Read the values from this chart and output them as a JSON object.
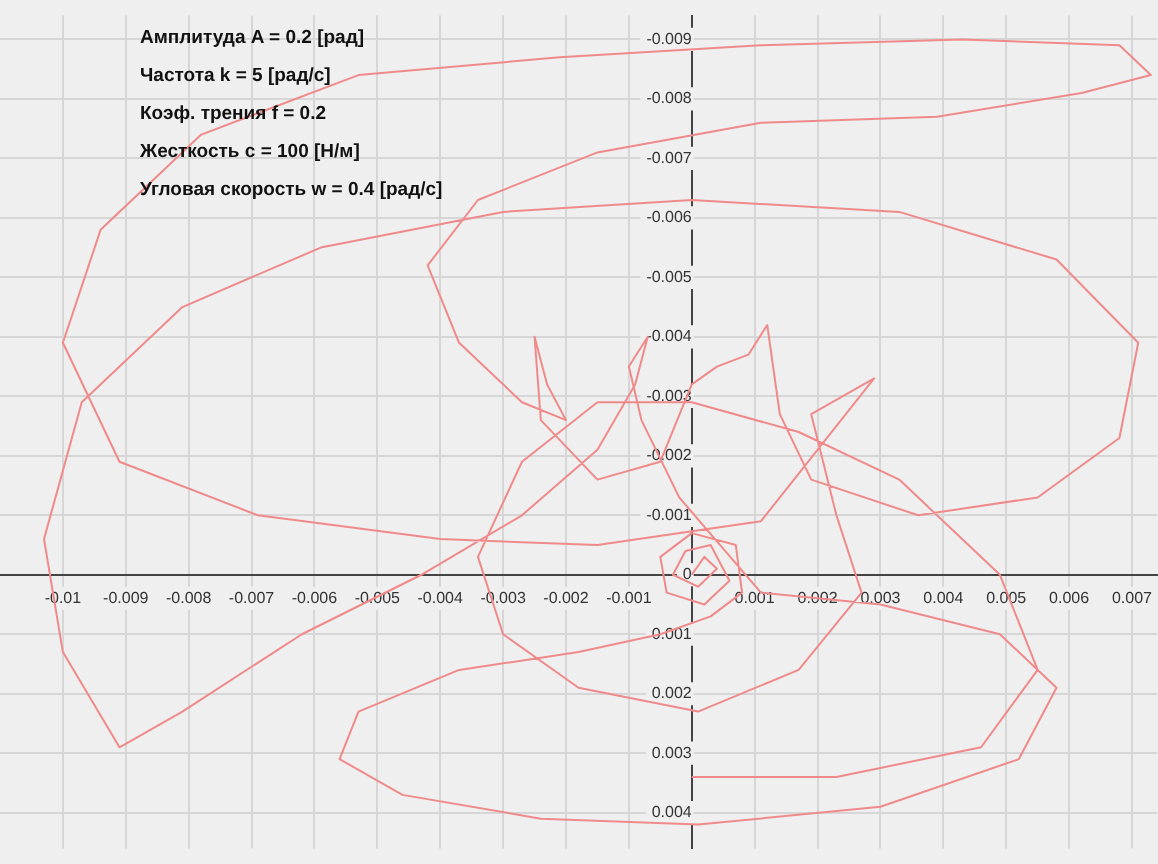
{
  "chart_data": {
    "type": "line",
    "annotations": [
      "Амплитуда A = 0.2 [рад]",
      "Частота k = 5 [рад/с]",
      "Коэф. трения f = 0.2",
      "Жесткость c = 100 [Н/м]",
      "Угловая скорость w = 0.4 [рад/с]"
    ],
    "series": [
      {
        "color": "#f08a8a",
        "x": [
          0,
          0.0002,
          0.0004,
          0.0001,
          -0.0003,
          -0.0001,
          0.0003,
          0.0006,
          0.0002,
          -0.0004,
          -0.0005,
          0,
          0.0007,
          0.0008,
          0.0003,
          -0.0005,
          -0.0018,
          -0.0037,
          -0.0053,
          -0.0056,
          -0.0046,
          -0.0024,
          0.0001,
          0.003,
          0.0052,
          0.0058,
          0.0049,
          0.003,
          0.0011,
          -0.0002,
          -0.0008,
          -0.001,
          -0.0007,
          -0.0009,
          -0.0015,
          -0.0027,
          -0.0043,
          -0.0062,
          -0.0081,
          -0.0091,
          -0.01,
          -0.0103,
          -0.0097,
          -0.0081,
          -0.0059,
          -0.003,
          0,
          0.0033,
          0.0058,
          0.0071,
          0.0068,
          0.0055,
          0.0036,
          0.0019,
          0.0014,
          0.0012,
          0.0009,
          0.0004,
          0,
          -0.0005,
          -0.0015,
          -0.0024,
          -0.0025,
          -0.0023,
          -0.002,
          -0.0027,
          -0.0037,
          -0.0042,
          -0.0034,
          -0.0015,
          0.0011,
          0.0039,
          0.0062,
          0.0073,
          0.0068,
          0.0043,
          0.0011,
          -0.0021,
          -0.0053,
          -0.0078,
          -0.0094,
          -0.01,
          -0.0091,
          -0.0069,
          -0.004,
          -0.0015,
          0.0011,
          0.0029,
          0.0019,
          0.0023,
          0.0027,
          0.0017,
          0.0001,
          -0.0018,
          -0.003,
          -0.0034,
          -0.0027,
          -0.0015,
          0,
          0.0017,
          0.0033,
          0.0049,
          0.0055,
          0.0046,
          0.0023,
          0
        ],
        "values": [
          0,
          -0.0003,
          -0.0001,
          0.0002,
          0,
          -0.0004,
          -0.0005,
          0.0001,
          0.0005,
          0.0003,
          -0.0003,
          -0.0007,
          -0.0005,
          0.0003,
          0.0007,
          0.001,
          0.0013,
          0.0016,
          0.0023,
          0.0031,
          0.0037,
          0.0041,
          0.0042,
          0.0039,
          0.0031,
          0.0019,
          0.001,
          0.0005,
          0.0003,
          -0.0013,
          -0.0026,
          -0.0035,
          -0.004,
          -0.0032,
          -0.0021,
          -0.001,
          0,
          0.001,
          0.0023,
          0.0029,
          0.0013,
          -0.0006,
          -0.0029,
          -0.0045,
          -0.0055,
          -0.0061,
          -0.0063,
          -0.0061,
          -0.0053,
          -0.0039,
          -0.0023,
          -0.0013,
          -0.001,
          -0.0016,
          -0.0027,
          -0.0042,
          -0.0037,
          -0.0035,
          -0.0032,
          -0.0019,
          -0.0016,
          -0.0026,
          -0.004,
          -0.0032,
          -0.0026,
          -0.0029,
          -0.0039,
          -0.0052,
          -0.0063,
          -0.0071,
          -0.0076,
          -0.0077,
          -0.0081,
          -0.0084,
          -0.0089,
          -0.009,
          -0.0089,
          -0.0087,
          -0.0084,
          -0.0074,
          -0.0058,
          -0.0039,
          -0.0019,
          -0.001,
          -0.0006,
          -0.0005,
          -0.0009,
          -0.0033,
          -0.0027,
          -0.001,
          0.0003,
          0.0016,
          0.0023,
          0.0019,
          0.001,
          -0.0003,
          -0.0019,
          -0.0029,
          -0.0029,
          -0.0024,
          -0.0016,
          0,
          0.0016,
          0.0029,
          0.0034,
          0.0034
        ]
      }
    ],
    "xlim": [
      -0.011,
      0.0074
    ],
    "ylim": [
      0.0046,
      -0.0094
    ],
    "xticks": [
      -0.01,
      -0.009,
      -0.008,
      -0.007,
      -0.006,
      -0.005,
      -0.004,
      -0.003,
      -0.002,
      -0.001,
      {
        "value": 0,
        "label": null
      },
      0.001,
      0.002,
      0.003,
      0.004,
      0.005,
      0.006,
      0.007
    ],
    "yticks": [
      -0.009,
      -0.008,
      -0.007,
      -0.006,
      -0.005,
      -0.004,
      -0.003,
      -0.002,
      -0.001,
      0,
      0.001,
      0.002,
      0.003,
      0.004
    ],
    "grid": true,
    "marker": "none",
    "line_style": "solid"
  }
}
